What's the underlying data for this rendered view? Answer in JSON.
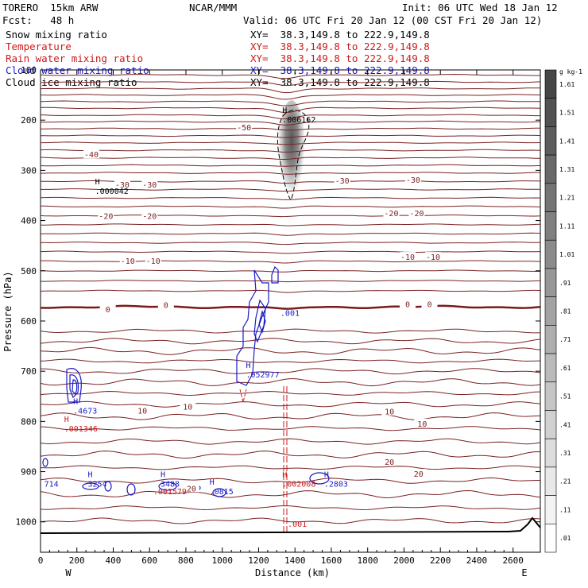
{
  "header": {
    "model": "TORERO  15km ARW",
    "center": "NCAR/MMM",
    "init": "Init: 06 UTC Wed 18 Jan 12",
    "fcst": "Fcst:   48 h",
    "valid": "Valid: 06 UTC Fri 20 Jan 12 (00 CST Fri 20 Jan 12)"
  },
  "fields": [
    {
      "name": "Snow mixing ratio",
      "xy": "XY=  38.3,149.8 to 222.9,149.8",
      "color": "#000000"
    },
    {
      "name": "Temperature",
      "xy": "XY=  38.3,149.8 to 222.9,149.8",
      "color": "#cc1a1a"
    },
    {
      "name": "Rain water mixing ratio",
      "xy": "XY=  38.3,149.8 to 222.9,149.8",
      "color": "#cc1a1a"
    },
    {
      "name": "Cloud water mixing ratio",
      "xy": "XY=  38.3,149.8 to 222.9,149.8",
      "color": "#1a1ac8"
    },
    {
      "name": "Cloud ice mixing ratio",
      "xy": "XY=  38.3,149.8 to 222.9,149.8",
      "color": "#000000"
    }
  ],
  "chart_data": {
    "type": "contour",
    "xlabel": "Distance (km)",
    "ylabel": "Pressure (hPa)",
    "xlim": [
      0,
      2750
    ],
    "ylim": [
      1050,
      100
    ],
    "x_ticks": [
      0,
      200,
      400,
      600,
      800,
      1000,
      1200,
      1400,
      1600,
      1800,
      2000,
      2200,
      2400,
      2600
    ],
    "y_ticks": [
      100,
      200,
      300,
      400,
      500,
      600,
      700,
      800,
      900,
      1000
    ],
    "west_label": "W",
    "east_label": "E",
    "colorbar": {
      "unit": "g kg-1",
      "labels": [
        "1.61",
        "1.51",
        "1.41",
        "1.31",
        "1.21",
        "1.11",
        "1.01",
        ".91",
        ".81",
        ".71",
        ".61",
        ".51",
        ".41",
        ".31",
        ".21",
        ".11",
        ".01"
      ]
    },
    "temperature_labels": [
      {
        "text": "-50",
        "x": 1120,
        "p": 214
      },
      {
        "text": "-40",
        "x": 280,
        "p": 268
      },
      {
        "text": "-30",
        "x": 450,
        "p": 328
      },
      {
        "text": "-30",
        "x": 600,
        "p": 328
      },
      {
        "text": "-30",
        "x": 1660,
        "p": 320
      },
      {
        "text": "-30",
        "x": 2050,
        "p": 318
      },
      {
        "text": "-20",
        "x": 360,
        "p": 390
      },
      {
        "text": "-20",
        "x": 600,
        "p": 390
      },
      {
        "text": "-20",
        "x": 1930,
        "p": 385
      },
      {
        "text": "-20",
        "x": 2070,
        "p": 385
      },
      {
        "text": "-10",
        "x": 480,
        "p": 480
      },
      {
        "text": "-10",
        "x": 620,
        "p": 480
      },
      {
        "text": "-10",
        "x": 2020,
        "p": 472
      },
      {
        "text": "-10",
        "x": 2160,
        "p": 472
      },
      {
        "text": "0",
        "x": 370,
        "p": 576
      },
      {
        "text": "0",
        "x": 690,
        "p": 568
      },
      {
        "text": "0",
        "x": 2020,
        "p": 566
      },
      {
        "text": "0",
        "x": 2140,
        "p": 566
      },
      {
        "text": "10",
        "x": 560,
        "p": 778
      },
      {
        "text": "10",
        "x": 810,
        "p": 770
      },
      {
        "text": "10",
        "x": 1920,
        "p": 780
      },
      {
        "text": "10",
        "x": 2100,
        "p": 804
      },
      {
        "text": "20",
        "x": 830,
        "p": 933
      },
      {
        "text": "20",
        "x": 1920,
        "p": 880
      },
      {
        "text": "20",
        "x": 2080,
        "p": 904
      }
    ],
    "extrema_labels": [
      {
        "marker": "H",
        "value": ".006162",
        "x": 1330,
        "p": 200,
        "color": "#000000"
      },
      {
        "marker": "H",
        "value": ".000042",
        "x": 300,
        "p": 342,
        "color": "#000000"
      },
      {
        "marker": "",
        "value": ".001",
        "x": 1320,
        "p": 585,
        "color": "#1a1ac8"
      },
      {
        "marker": "H",
        "value": ".052977",
        "x": 1130,
        "p": 708,
        "color": "#1a1ac8"
      },
      {
        "marker": "H",
        "value": ".4673",
        "x": 180,
        "p": 780,
        "color": "#1a1ac8"
      },
      {
        "marker": "H",
        "value": ".001346",
        "x": 130,
        "p": 815,
        "color": "#cc1a1a"
      },
      {
        "marker": "",
        "value": "714",
        "x": 20,
        "p": 925,
        "color": "#1a1ac8"
      },
      {
        "marker": "H",
        "value": "3254",
        "x": 260,
        "p": 925,
        "color": "#1a1ac8"
      },
      {
        "marker": "H",
        "value": "3488",
        "x": 660,
        "p": 925,
        "color": "#1a1ac8"
      },
      {
        "marker": "",
        "value": ".001579",
        "x": 620,
        "p": 940,
        "color": "#cc1a1a"
      },
      {
        "marker": "H",
        "value": ".0815",
        "x": 930,
        "p": 940,
        "color": "#1a1ac8"
      },
      {
        "marker": "H",
        "value": ".002008",
        "x": 1330,
        "p": 925,
        "color": "#cc1a1a"
      },
      {
        "marker": "H",
        "value": ".2803",
        "x": 1560,
        "p": 925,
        "color": "#1a1ac8"
      },
      {
        "marker": "",
        "value": ".001",
        "x": 1360,
        "p": 1005,
        "color": "#cc1a1a"
      }
    ]
  }
}
